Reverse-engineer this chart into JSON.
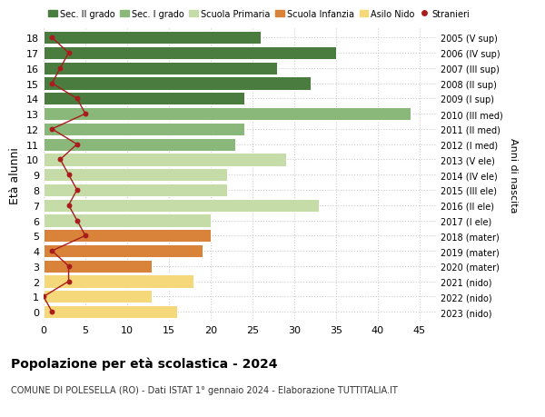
{
  "ages": [
    18,
    17,
    16,
    15,
    14,
    13,
    12,
    11,
    10,
    9,
    8,
    7,
    6,
    5,
    4,
    3,
    2,
    1,
    0
  ],
  "bar_values": [
    26,
    35,
    28,
    32,
    24,
    44,
    24,
    23,
    29,
    22,
    22,
    33,
    20,
    20,
    19,
    13,
    18,
    13,
    16
  ],
  "bar_colors": [
    "#4a7c3f",
    "#4a7c3f",
    "#4a7c3f",
    "#4a7c3f",
    "#4a7c3f",
    "#8ab87a",
    "#8ab87a",
    "#8ab87a",
    "#c5dba8",
    "#c5dba8",
    "#c5dba8",
    "#c5dba8",
    "#c5dba8",
    "#d9823a",
    "#d9823a",
    "#d9823a",
    "#f5d87a",
    "#f5d87a",
    "#f5d87a"
  ],
  "stranieri_values": [
    1,
    3,
    2,
    1,
    4,
    5,
    1,
    4,
    2,
    3,
    4,
    3,
    4,
    5,
    1,
    3,
    3,
    0,
    1
  ],
  "right_labels": [
    "2005 (V sup)",
    "2006 (IV sup)",
    "2007 (III sup)",
    "2008 (II sup)",
    "2009 (I sup)",
    "2010 (III med)",
    "2011 (II med)",
    "2012 (I med)",
    "2013 (V ele)",
    "2014 (IV ele)",
    "2015 (III ele)",
    "2016 (II ele)",
    "2017 (I ele)",
    "2018 (mater)",
    "2019 (mater)",
    "2020 (mater)",
    "2021 (nido)",
    "2022 (nido)",
    "2023 (nido)"
  ],
  "legend_labels": [
    "Sec. II grado",
    "Sec. I grado",
    "Scuola Primaria",
    "Scuola Infanzia",
    "Asilo Nido",
    "Stranieri"
  ],
  "legend_colors": [
    "#4a7c3f",
    "#8ab87a",
    "#c5dba8",
    "#d9823a",
    "#f5d87a",
    "#a81c1c"
  ],
  "ylabel": "Età alunni",
  "ylabel_right": "Anni di nascita",
  "title": "Popolazione per età scolastica - 2024",
  "subtitle": "COMUNE DI POLESELLA (RO) - Dati ISTAT 1° gennaio 2024 - Elaborazione TUTTITALIA.IT",
  "xlim": [
    0,
    47
  ],
  "xticks": [
    0,
    5,
    10,
    15,
    20,
    25,
    30,
    35,
    40,
    45
  ],
  "background_color": "#ffffff",
  "grid_color": "#cccccc",
  "stranieri_color": "#a81c1c",
  "bar_edgecolor": "white"
}
